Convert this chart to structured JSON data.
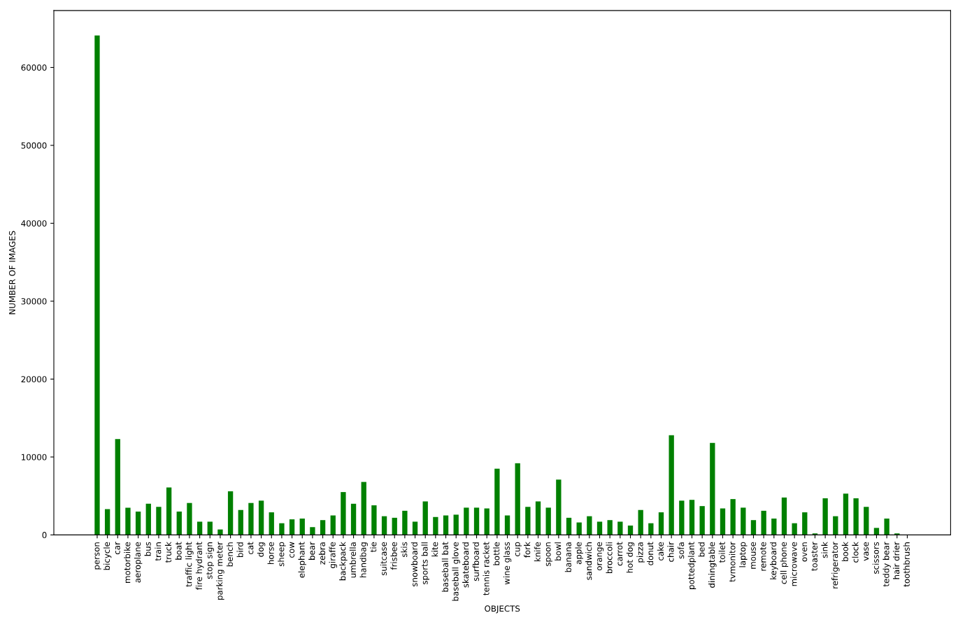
{
  "chart_data": {
    "type": "bar",
    "xlabel": "OBJECTS",
    "ylabel": "NUMBER OF IMAGES",
    "color": "#008000",
    "categories": [
      "person",
      "bicycle",
      "car",
      "motorbike",
      "aeroplane",
      "bus",
      "train",
      "truck",
      "boat",
      "traffic light",
      "fire hydrant",
      "stop sign",
      "parking meter",
      "bench",
      "bird",
      "cat",
      "dog",
      "horse",
      "sheep",
      "cow",
      "elephant",
      "bear",
      "zebra",
      "giraffe",
      "backpack",
      "umbrella",
      "handbag",
      "tie",
      "suitcase",
      "frisbee",
      "skis",
      "snowboard",
      "sports ball",
      "kite",
      "baseball bat",
      "baseball glove",
      "skateboard",
      "surfboard",
      "tennis racket",
      "bottle",
      "wine glass",
      "cup",
      "fork",
      "knife",
      "spoon",
      "bowl",
      "banana",
      "apple",
      "sandwich",
      "orange",
      "broccoli",
      "carrot",
      "hot dog",
      "pizza",
      "donut",
      "cake",
      "chair",
      "sofa",
      "pottedplant",
      "bed",
      "diningtable",
      "toilet",
      "tvmonitor",
      "laptop",
      "mouse",
      "remote",
      "keyboard",
      "cell phone",
      "microwave",
      "oven",
      "toaster",
      "sink",
      "refrigerator",
      "book",
      "clock",
      "vase",
      "scissors",
      "teddy bear",
      "hair drier",
      "toothbrush"
    ],
    "values": [
      64100,
      3300,
      12300,
      3500,
      3000,
      4000,
      3600,
      6100,
      3000,
      4100,
      1700,
      1700,
      700,
      5600,
      3200,
      4100,
      4400,
      2900,
      1500,
      2000,
      2100,
      1000,
      1900,
      2500,
      5500,
      4000,
      6800,
      3800,
      2400,
      2200,
      3100,
      1700,
      4300,
      2300,
      2500,
      2600,
      3500,
      3500,
      3400,
      8500,
      2500,
      9200,
      3600,
      4300,
      3500,
      7100,
      2200,
      1600,
      2400,
      1700,
      1900,
      1700,
      1200,
      3200,
      1500,
      2900,
      12800,
      4400,
      4500,
      3700,
      11800,
      3400,
      4600,
      3500,
      1900,
      3100,
      2100,
      4800,
      1500,
      2900,
      200,
      4700,
      2400,
      5300,
      4700,
      3600,
      900,
      2100,
      200,
      0
    ],
    "ylim": [
      0,
      67300
    ],
    "yticks": [
      0,
      10000,
      20000,
      30000,
      40000,
      50000,
      60000
    ],
    "grid": false,
    "legend": false
  }
}
